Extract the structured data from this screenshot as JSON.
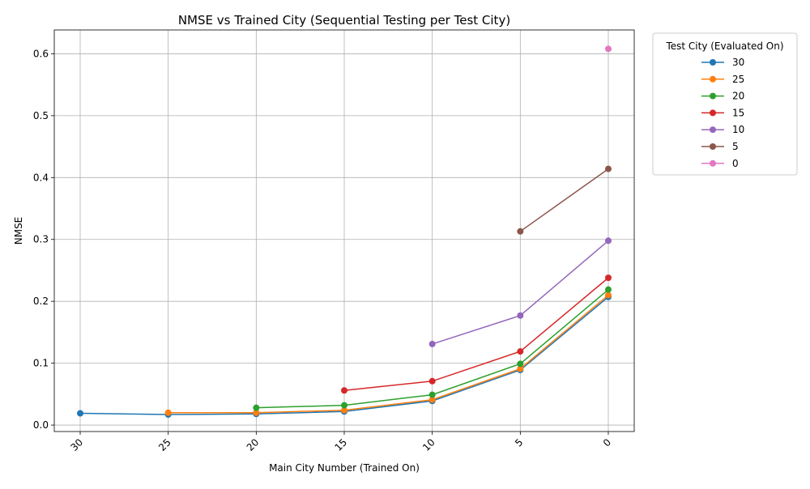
{
  "chart_data": {
    "type": "line",
    "title": "NMSE vs Trained City (Sequential Testing per Test City)",
    "xlabel": "Main City Number (Trained On)",
    "ylabel": "NMSE",
    "x_categories": [
      "30",
      "25",
      "20",
      "15",
      "10",
      "5",
      "0"
    ],
    "ylim": [
      -0.0104,
      0.6385
    ],
    "yticks": [
      0.0,
      0.1,
      0.2,
      0.3,
      0.4,
      0.5,
      0.6
    ],
    "ytick_labels": [
      "0.0",
      "0.1",
      "0.2",
      "0.3",
      "0.4",
      "0.5",
      "0.6"
    ],
    "grid": true,
    "legend_title": "Test City (Evaluated On)",
    "legend_placement": "outside-top-right",
    "series": [
      {
        "name": "30",
        "color": "#1f77b4",
        "x": [
          "30",
          "25",
          "20",
          "15",
          "10",
          "5",
          "0"
        ],
        "y": [
          0.019,
          0.017,
          0.018,
          0.022,
          0.039,
          0.089,
          0.207
        ]
      },
      {
        "name": "25",
        "color": "#ff7f0e",
        "x": [
          "25",
          "20",
          "15",
          "10",
          "5",
          "0"
        ],
        "y": [
          0.02,
          0.02,
          0.024,
          0.041,
          0.091,
          0.21
        ]
      },
      {
        "name": "20",
        "color": "#2ca02c",
        "x": [
          "20",
          "15",
          "10",
          "5",
          "0"
        ],
        "y": [
          0.028,
          0.032,
          0.049,
          0.099,
          0.219
        ]
      },
      {
        "name": "15",
        "color": "#d62728",
        "x": [
          "15",
          "10",
          "5",
          "0"
        ],
        "y": [
          0.056,
          0.071,
          0.119,
          0.238
        ]
      },
      {
        "name": "10",
        "color": "#9467bd",
        "x": [
          "10",
          "5",
          "0"
        ],
        "y": [
          0.131,
          0.177,
          0.298
        ]
      },
      {
        "name": "5",
        "color": "#8c564b",
        "x": [
          "5",
          "0"
        ],
        "y": [
          0.313,
          0.414
        ]
      },
      {
        "name": "0",
        "color": "#e377c2",
        "x": [
          "0"
        ],
        "y": [
          0.608
        ]
      }
    ]
  }
}
